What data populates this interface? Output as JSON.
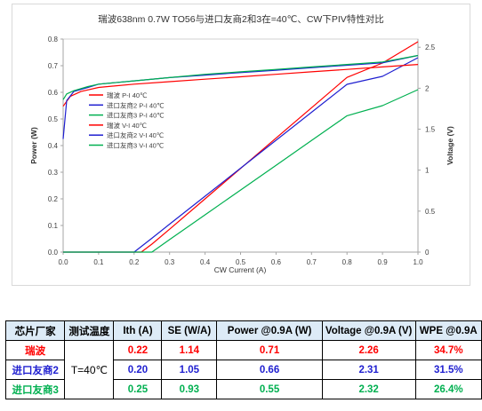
{
  "chart_data": {
    "type": "line",
    "title": "瑞波638nm 0.7W TO56与进口友商2和3在=40℃、CW下PIV特性对比",
    "xlabel": "CW Current (A)",
    "ylabel": "Power (W)",
    "y2label": "Voltage (V)",
    "xlim": [
      0,
      1.0
    ],
    "ylim": [
      0,
      0.8
    ],
    "y2lim": [
      0,
      2.6
    ],
    "x_ticks": [
      "0.0",
      "0.1",
      "0.2",
      "0.3",
      "0.4",
      "0.5",
      "0.6",
      "0.7",
      "0.8",
      "0.9",
      "1.0"
    ],
    "y_ticks": [
      "0.0",
      "0.1",
      "0.2",
      "0.3",
      "0.4",
      "0.5",
      "0.6",
      "0.7",
      "0.8"
    ],
    "y2_ticks": [
      "0",
      "0.5",
      "1",
      "1.5",
      "2",
      "2.5"
    ],
    "grid": false,
    "legend_position": "left",
    "series": [
      {
        "name": "瑞波  P-I 40℃",
        "axis": "power",
        "color": "#ff0000",
        "x": [
          0,
          0.22,
          0.25,
          0.3,
          0.4,
          0.5,
          0.6,
          0.7,
          0.8,
          0.9,
          1.0
        ],
        "y": [
          0,
          0,
          0.03,
          0.086,
          0.2,
          0.314,
          0.428,
          0.542,
          0.656,
          0.71,
          0.79
        ]
      },
      {
        "name": "进口友商2 P-I 40℃",
        "axis": "power",
        "color": "#1f1fd0",
        "x": [
          0,
          0.2,
          0.25,
          0.3,
          0.4,
          0.5,
          0.6,
          0.7,
          0.8,
          0.9,
          1.0
        ],
        "y": [
          0,
          0,
          0.052,
          0.105,
          0.21,
          0.315,
          0.42,
          0.525,
          0.63,
          0.66,
          0.73
        ]
      },
      {
        "name": "进口友商3 P-I 40℃",
        "axis": "power",
        "color": "#00b050",
        "x": [
          0,
          0.25,
          0.3,
          0.4,
          0.5,
          0.6,
          0.7,
          0.8,
          0.9,
          1.0
        ],
        "y": [
          0,
          0,
          0.047,
          0.14,
          0.233,
          0.326,
          0.419,
          0.512,
          0.55,
          0.61
        ]
      },
      {
        "name": "瑞波  V-I 40℃",
        "axis": "voltage",
        "color": "#ff0000",
        "x": [
          0,
          0.02,
          0.05,
          0.1,
          0.2,
          0.3,
          0.4,
          0.5,
          0.6,
          0.7,
          0.8,
          0.9,
          1.0
        ],
        "y": [
          1.78,
          1.9,
          1.96,
          2.01,
          2.05,
          2.08,
          2.11,
          2.14,
          2.17,
          2.2,
          2.23,
          2.26,
          2.29
        ]
      },
      {
        "name": "进口友商2 V-I 40℃",
        "axis": "voltage",
        "color": "#1f1fd0",
        "x": [
          0,
          0.01,
          0.03,
          0.07,
          0.1,
          0.2,
          0.3,
          0.4,
          0.5,
          0.6,
          0.7,
          0.8,
          0.9,
          1.0
        ],
        "y": [
          1.38,
          1.85,
          1.96,
          2.01,
          2.05,
          2.09,
          2.13,
          2.16,
          2.19,
          2.22,
          2.25,
          2.28,
          2.31,
          2.4
        ]
      },
      {
        "name": "进口友商3 V-I 40℃",
        "axis": "voltage",
        "color": "#00b050",
        "x": [
          0,
          0.01,
          0.03,
          0.07,
          0.1,
          0.2,
          0.3,
          0.4,
          0.5,
          0.6,
          0.7,
          0.8,
          0.9,
          1.0
        ],
        "y": [
          1.86,
          1.93,
          1.97,
          2.02,
          2.05,
          2.09,
          2.13,
          2.17,
          2.2,
          2.23,
          2.26,
          2.29,
          2.32,
          2.4
        ]
      }
    ]
  },
  "table": {
    "headers": [
      "芯片厂家",
      "测试温度",
      "Ith (A)",
      "SE (W/A)",
      "Power @0.9A (W)",
      "Voltage @0.9A (V)",
      "WPE @0.9A"
    ],
    "temperature": "T=40℃",
    "rows": [
      {
        "vendor": "瑞波",
        "color": "#ff0000",
        "values": [
          "0.22",
          "1.14",
          "0.71",
          "2.26",
          "34.7%"
        ]
      },
      {
        "vendor": "进口友商2",
        "color": "#1f1fd0",
        "values": [
          "0.20",
          "1.05",
          "0.66",
          "2.31",
          "31.5%"
        ]
      },
      {
        "vendor": "进口友商3",
        "color": "#00b050",
        "values": [
          "0.25",
          "0.93",
          "0.55",
          "2.32",
          "26.4%"
        ]
      }
    ]
  }
}
